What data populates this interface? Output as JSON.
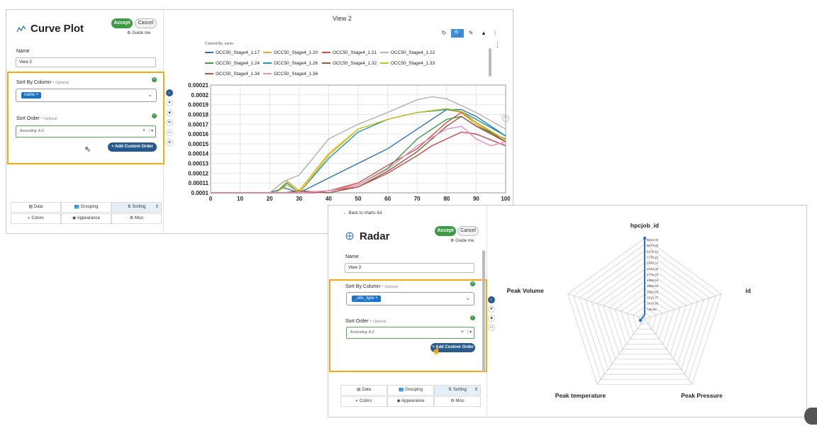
{
  "curve": {
    "title": "Curve Plot",
    "accept": "Accept",
    "cancel": "Cancel",
    "guide": "Guide me",
    "name_label": "Name",
    "name_value": "View 2",
    "sort_col_label": "Sort By Column",
    "optional": "Optional",
    "sort_col_chip": "name",
    "sort_order_label": "Sort Order",
    "sort_order_value": "Ascending: A-Z",
    "add_custom": "+ Add Custom Order",
    "tabs": [
      "Data",
      "Grouping",
      "Sorting",
      "Colors",
      "Appearance",
      "Misc"
    ],
    "view_title": "View 2",
    "colored_by": "Colored By: name"
  },
  "chart_data": {
    "type": "line",
    "xlim": [
      0,
      100
    ],
    "ylim": [
      0.0001,
      0.00021
    ],
    "x_ticks": [
      "0",
      "10",
      "20",
      "30",
      "40",
      "50",
      "60",
      "70",
      "80",
      "90",
      "100"
    ],
    "y_ticks": [
      "0.00021",
      "0.0002",
      "0.00019",
      "0.00018",
      "0.00017",
      "0.00016",
      "0.00015",
      "0.00014",
      "0.00013",
      "0.00012",
      "0.00011",
      "0.0001"
    ],
    "series": [
      {
        "name": "OCC50_Stage4_1.17",
        "color": "#2f6fbf",
        "x": [
          0,
          20,
          25,
          30,
          40,
          50,
          60,
          70,
          80,
          85,
          90,
          100
        ],
        "y": [
          0.0001,
          0.0001,
          0.000105,
          0.0001,
          0.000115,
          0.00013,
          0.000145,
          0.000165,
          0.000185,
          0.000185,
          0.000178,
          0.000158
        ]
      },
      {
        "name": "OCC50_Stage4_1.20",
        "color": "#f2a81c",
        "x": [
          0,
          22,
          26,
          30,
          40,
          50,
          60,
          70,
          80,
          85,
          90,
          100
        ],
        "y": [
          0.0001,
          0.0001,
          0.000112,
          0.000102,
          0.00014,
          0.000165,
          0.000175,
          0.000182,
          0.000185,
          0.000182,
          0.00017,
          0.000152
        ]
      },
      {
        "name": "OCC50_Stage4_1.21",
        "color": "#d64b3d",
        "x": [
          0,
          25,
          30,
          40,
          50,
          60,
          70,
          80,
          85,
          90,
          100
        ],
        "y": [
          0.0001,
          0.0001,
          0.0001,
          0.000102,
          0.00011,
          0.000128,
          0.000145,
          0.000172,
          0.000182,
          0.000172,
          0.000152
        ]
      },
      {
        "name": "OCC50_Stage4_1.22",
        "color": "#b0b0b0",
        "x": [
          0,
          20,
          25,
          30,
          40,
          50,
          60,
          70,
          75,
          80,
          90,
          100
        ],
        "y": [
          0.0001,
          0.0001,
          0.000112,
          0.000118,
          0.000155,
          0.00017,
          0.000182,
          0.000195,
          0.000198,
          0.000196,
          0.000182,
          0.000165
        ]
      },
      {
        "name": "OCC50_Stage4_1.24",
        "color": "#3c9c45",
        "x": [
          0,
          25,
          30,
          40,
          50,
          60,
          70,
          80,
          85,
          90,
          100
        ],
        "y": [
          0.0001,
          0.0001,
          0.0001,
          0.000102,
          0.000108,
          0.000125,
          0.000155,
          0.000175,
          0.000178,
          0.000168,
          0.000155
        ]
      },
      {
        "name": "OCC50_Stage4_1.26",
        "color": "#1b9aa8",
        "x": [
          0,
          22,
          26,
          30,
          40,
          50,
          60,
          70,
          80,
          85,
          90,
          100
        ],
        "y": [
          0.0001,
          0.0001,
          0.00011,
          0.0001,
          0.000135,
          0.000162,
          0.000175,
          0.000182,
          0.000185,
          0.000183,
          0.000175,
          0.000158
        ]
      },
      {
        "name": "OCC50_Stage4_1.32",
        "color": "#8c5a3c",
        "x": [
          0,
          25,
          30,
          40,
          50,
          60,
          70,
          80,
          85,
          90,
          100
        ],
        "y": [
          0.0001,
          0.0001,
          0.000102,
          0.0001,
          0.000106,
          0.000122,
          0.000142,
          0.000168,
          0.000178,
          0.000168,
          0.000152
        ]
      },
      {
        "name": "OCC50_Stage4_1.33",
        "color": "#c9c41a",
        "x": [
          0,
          22,
          26,
          30,
          40,
          50,
          60,
          70,
          80,
          85,
          90,
          100
        ],
        "y": [
          0.0001,
          0.0001,
          0.000108,
          0.0001,
          0.000138,
          0.000165,
          0.000175,
          0.000182,
          0.000186,
          0.000183,
          0.000172,
          0.000154
        ]
      },
      {
        "name": "OCC50_Stage4_1.34",
        "color": "#c94a4a",
        "x": [
          0,
          28,
          35,
          40,
          50,
          60,
          70,
          75,
          80,
          85,
          90,
          100
        ],
        "y": [
          0.0001,
          0.0001,
          0.0001,
          0.000102,
          0.000106,
          0.00012,
          0.000138,
          0.000148,
          0.000155,
          0.000162,
          0.00016,
          0.000148
        ]
      },
      {
        "name": "OCC50_Stage4_1.36",
        "color": "#e58fc7",
        "x": [
          0,
          25,
          30,
          40,
          50,
          60,
          70,
          80,
          85,
          90,
          95,
          100
        ],
        "y": [
          0.0001,
          0.0001,
          0.0001,
          0.000102,
          0.000108,
          0.000124,
          0.000148,
          0.000165,
          0.000168,
          0.000155,
          0.000148,
          0.000152
        ]
      }
    ]
  },
  "radar": {
    "back": "← Back to charts list",
    "title": "Radar",
    "accept": "Accept",
    "cancel": "Cancel",
    "guide": "Guide me",
    "name_label": "Name",
    "name_value": "View 3",
    "sort_col_label": "Sort By Column",
    "optional": "Optional",
    "sort_col_chip": "_obs_type",
    "sort_order_label": "Sort Order",
    "sort_order_value": "Ascending: A-Z",
    "add_custom": "+ Add Custom Order",
    "tabs": [
      "Data",
      "Grouping",
      "Sorting",
      "Colors",
      "Appearance",
      "Misc"
    ],
    "axes": [
      "hpcjob_id",
      "id",
      "Peak Pressure",
      "Peak temperature",
      "Peak Volume"
    ],
    "scale_labels": [
      "9615,00",
      "8870,00",
      "8105,10",
      "7730,22",
      "6995,31",
      "6510,36",
      "5775,40",
      "4955,54",
      "3990,62",
      "2990,69",
      "2210,77",
      "1470,85",
      "735,92"
    ]
  }
}
